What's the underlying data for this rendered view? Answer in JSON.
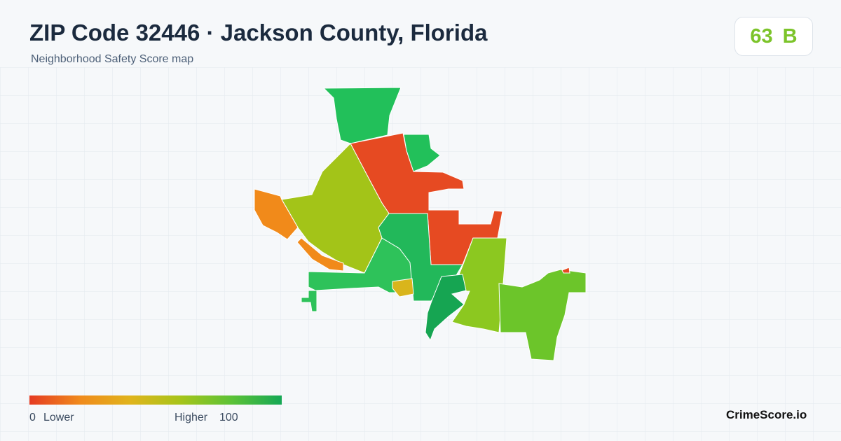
{
  "header": {
    "title": "ZIP Code 32446 · Jackson County, Florida",
    "subtitle": "Neighborhood Safety Score map"
  },
  "score": {
    "value": "63",
    "grade": "B"
  },
  "legend": {
    "min": "0",
    "min_label": "Lower",
    "max_label": "Higher",
    "max": "100"
  },
  "brand": "CrimeScore.io"
}
